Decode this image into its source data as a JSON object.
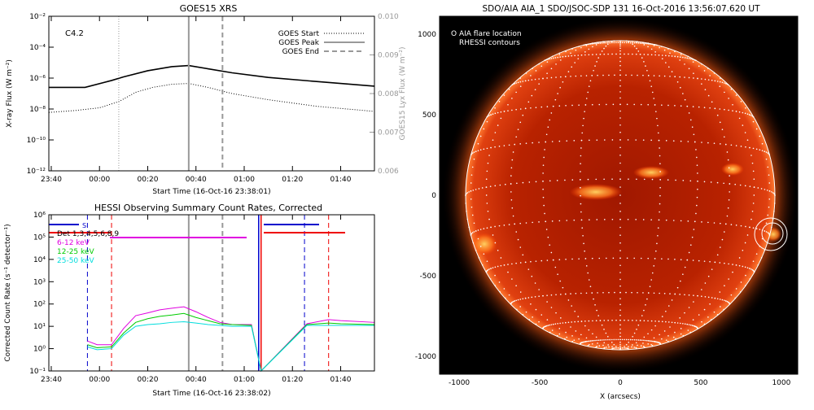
{
  "colors": {
    "background": "#ffffff",
    "axis": "#000000",
    "goes_grey": "#999999",
    "aia_bg": "#000000",
    "aia_disk": "#b32000",
    "rhessi_blue": "#0000cc",
    "rhessi_red": "#ee0000",
    "magenta": "#e000e0",
    "green": "#00cc00",
    "cyan": "#00dddd"
  },
  "chart_data": [
    {
      "type": "line",
      "title": "GOES15 XRS",
      "xlabel": "Start Time (16-Oct-16 23:38:01)",
      "ylabel": "X-ray Flux (W m⁻²)",
      "y2label": "GOES15 Lyx Flux (W m⁻²)",
      "annotation": "C4.2",
      "x_ticks": [
        "23:40",
        "00:00",
        "00:20",
        "00:40",
        "01:00",
        "01:20",
        "01:40"
      ],
      "xlim_minutes": [
        -21,
        114
      ],
      "y_scale": "log",
      "ylim": [
        1e-12,
        0.01
      ],
      "y_ticks": [
        "10⁻¹²",
        "10⁻¹⁰",
        "10⁻⁸",
        "10⁻⁶",
        "10⁻⁴",
        "10⁻²"
      ],
      "y2lim": [
        0.006,
        0.01
      ],
      "y2_ticks": [
        "0.006",
        "0.007",
        "0.008",
        "0.009",
        "0.010"
      ],
      "legend": [
        {
          "name": "GOES Start",
          "style": "dotted"
        },
        {
          "name": "GOES Peak",
          "style": "solid"
        },
        {
          "name": "GOES End",
          "style": "dashed"
        }
      ],
      "legend_position": "top-right",
      "vlines_minutes": {
        "start": 8,
        "peak": 37,
        "end": 51
      },
      "series": [
        {
          "x_minutes": [
            -21,
            -6,
            5,
            10,
            20,
            30,
            37,
            45,
            55,
            70,
            90,
            114
          ],
          "y": [
            2.5e-07,
            2.5e-07,
            7e-07,
            1.2e-06,
            3e-06,
            5.5e-06,
            6.5e-06,
            4e-06,
            2.2e-06,
            1.1e-06,
            6e-07,
            3e-07
          ]
        },
        {
          "x_minutes": [
            -21,
            -10,
            0,
            8,
            15,
            22,
            30,
            37,
            45,
            55,
            70,
            90,
            114
          ],
          "y": [
            6e-09,
            8e-09,
            1.2e-08,
            3e-08,
            1.2e-07,
            2.5e-07,
            4e-07,
            4.5e-07,
            2.5e-07,
            1e-07,
            4e-08,
            1.5e-08,
            7e-09
          ]
        }
      ]
    },
    {
      "type": "line",
      "title": "HESSI Observing Summary Count Rates, Corrected",
      "xlabel": "Start Time (16-Oct-16 23:38:02)",
      "ylabel": "Corrected Count Rate (s⁻¹ detector⁻¹)",
      "x_ticks": [
        "23:40",
        "00:00",
        "00:20",
        "00:40",
        "01:00",
        "01:20",
        "01:40"
      ],
      "xlim_minutes": [
        -21,
        114
      ],
      "y_scale": "log",
      "ylim": [
        0.1,
        1000000.0
      ],
      "y_ticks": [
        "10⁻¹",
        "10⁰",
        "10¹",
        "10²",
        "10³",
        "10⁴",
        "10⁵",
        "10⁶"
      ],
      "legend": [
        "Det 1,3,4,5,6,8,9",
        "6-12 keV",
        "12-25 keV",
        "25-50 keV"
      ],
      "legend_position": "top-left",
      "marker_label": "S",
      "blue_dashed_minutes": [
        -5,
        85
      ],
      "red_dashed_minutes": [
        5,
        95
      ],
      "grey_solid_minute": 37,
      "grey_dashed_minute": 51,
      "series": [
        {
          "name": "6-12 keV",
          "x_minutes": [
            -5,
            -1,
            5,
            10,
            15,
            20,
            25,
            30,
            35,
            40,
            45,
            50,
            55,
            63,
            67,
            86,
            95,
            100,
            114
          ],
          "y": [
            2.2,
            1.5,
            1.5,
            8,
            30,
            40,
            55,
            65,
            75,
            45,
            25,
            15,
            12,
            12,
            0.1,
            13,
            20,
            18,
            15
          ]
        },
        {
          "name": "12-25 keV",
          "x_minutes": [
            -5,
            -1,
            5,
            10,
            15,
            20,
            25,
            30,
            35,
            40,
            45,
            50,
            55,
            63,
            67,
            86,
            95,
            100,
            114
          ],
          "y": [
            1.5,
            1.1,
            1.2,
            5,
            15,
            22,
            28,
            32,
            38,
            25,
            18,
            13,
            12,
            11,
            0.1,
            12,
            14,
            13,
            12
          ]
        },
        {
          "name": "25-50 keV",
          "x_minutes": [
            -5,
            -1,
            5,
            10,
            15,
            20,
            25,
            30,
            35,
            40,
            45,
            50,
            55,
            63,
            67,
            86,
            95,
            100,
            114
          ],
          "y": [
            1.2,
            0.9,
            1.0,
            4,
            10,
            12,
            13,
            15,
            16,
            14,
            12,
            11,
            10,
            10,
            0.1,
            11,
            11,
            11,
            11
          ]
        }
      ]
    }
  ],
  "aia": {
    "title": "SDO/AIA AIA_1 SDO/JSOC-SDP 131 16-Oct-2016 13:56:07.620 UT",
    "legend": [
      "O AIA flare location",
      "RHESSI contours"
    ],
    "xlabel": "X (arcsecs)",
    "x_ticks": [
      "-1000",
      "-500",
      "0",
      "500",
      "1000"
    ],
    "y_ticks": [
      "1000",
      "500",
      "0",
      "-500",
      "-1000"
    ],
    "xlim": [
      -1000,
      1000
    ],
    "ylim": [
      -1000,
      1000
    ],
    "flare_location_arcsec": [
      930,
      -230
    ]
  }
}
